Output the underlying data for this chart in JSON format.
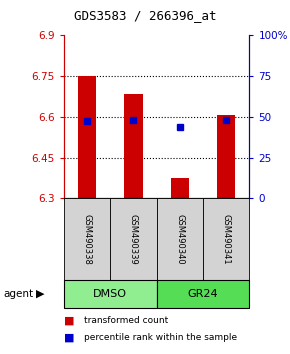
{
  "title": "GDS3583 / 266396_at",
  "samples": [
    "GSM490338",
    "GSM490339",
    "GSM490340",
    "GSM490341"
  ],
  "groups": [
    {
      "label": "DMSO",
      "color": "#90EE90",
      "samples": [
        0,
        1
      ]
    },
    {
      "label": "GR24",
      "color": "#55DD55",
      "samples": [
        2,
        3
      ]
    }
  ],
  "bar_values": [
    6.75,
    6.685,
    6.375,
    6.605
  ],
  "bar_base": 6.3,
  "bar_color": "#CC0000",
  "bar_width": 0.4,
  "percentile_values": [
    6.585,
    6.587,
    6.563,
    6.587
  ],
  "percentile_color": "#0000CC",
  "percentile_marker_size": 4,
  "ylim": [
    6.3,
    6.9
  ],
  "yticks_left": [
    6.3,
    6.45,
    6.6,
    6.75,
    6.9
  ],
  "ytick_labels_left": [
    "6.3",
    "6.45",
    "6.6",
    "6.75",
    "6.9"
  ],
  "yticks_right_vals": [
    0,
    25,
    50,
    75,
    100
  ],
  "ytick_labels_right": [
    "0",
    "25",
    "50",
    "75",
    "100%"
  ],
  "grid_ticks": [
    6.45,
    6.6,
    6.75
  ],
  "left_axis_color": "#CC0000",
  "right_axis_color": "#0000CC",
  "legend_items": [
    {
      "color": "#CC0000",
      "label": "transformed count"
    },
    {
      "color": "#0000CC",
      "label": "percentile rank within the sample"
    }
  ],
  "agent_label": "agent",
  "sample_box_color": "#D3D3D3",
  "background_color": "#ffffff"
}
